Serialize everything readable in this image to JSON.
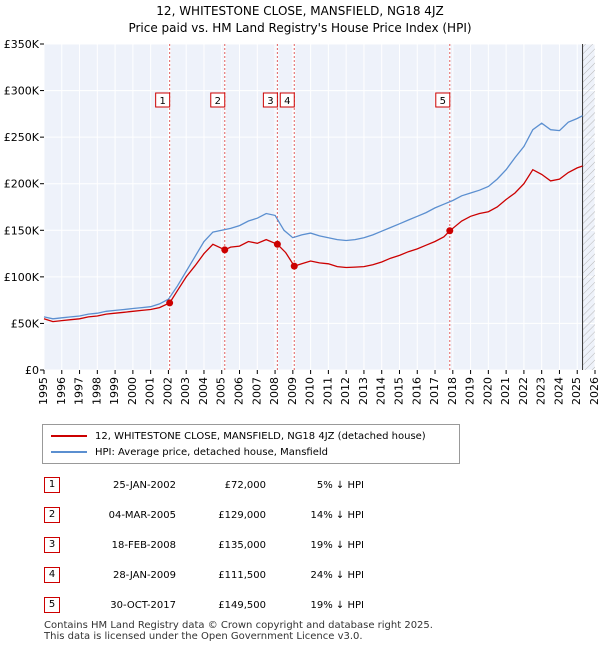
{
  "chart_data": {
    "type": "line",
    "title": "12, WHITESTONE CLOSE, MANSFIELD, NG18 4JZ",
    "subtitle": "Price paid vs. HM Land Registry's House Price Index (HPI)",
    "xlim": [
      1995,
      2026
    ],
    "ylim": [
      0,
      350000
    ],
    "yticks": [
      0,
      50000,
      100000,
      150000,
      200000,
      250000,
      300000,
      350000
    ],
    "ytick_labels": [
      "£0",
      "£50K",
      "£100K",
      "£150K",
      "£200K",
      "£250K",
      "£300K",
      "£350K"
    ],
    "xticks": [
      1995,
      1996,
      1997,
      1998,
      1999,
      2000,
      2001,
      2002,
      2003,
      2004,
      2005,
      2006,
      2007,
      2008,
      2009,
      2010,
      2011,
      2012,
      2013,
      2014,
      2015,
      2016,
      2017,
      2018,
      2019,
      2020,
      2021,
      2022,
      2023,
      2024,
      2025,
      2026
    ],
    "xtick_labels": [
      "1995",
      "1996",
      "1997",
      "1998",
      "1999",
      "2000",
      "2001",
      "2002",
      "2003",
      "2004",
      "2005",
      "2006",
      "2007",
      "2008",
      "2009",
      "2010",
      "2011",
      "2012",
      "2013",
      "2014",
      "2015",
      "2016",
      "2017",
      "2018",
      "2019",
      "2020",
      "2021",
      "2022",
      "2023",
      "2024",
      "2025",
      "2026"
    ],
    "grid": true,
    "data_end": 2025.3,
    "series": [
      {
        "name": "12, WHITESTONE CLOSE, MANSFIELD, NG18 4JZ (detached house)",
        "color": "#cc0000",
        "x": [
          1995.0,
          1995.5,
          1996.0,
          1996.5,
          1997.0,
          1997.5,
          1998.0,
          1998.5,
          1999.0,
          1999.5,
          2000.0,
          2000.5,
          2001.0,
          2001.5,
          2002.07,
          2002.5,
          2003.0,
          2003.5,
          2004.0,
          2004.5,
          2005.17,
          2005.5,
          2006.0,
          2006.5,
          2007.0,
          2007.5,
          2008.13,
          2008.6,
          2009.08,
          2009.5,
          2010.0,
          2010.5,
          2011.0,
          2011.5,
          2012.0,
          2012.5,
          2013.0,
          2013.5,
          2014.0,
          2014.5,
          2015.0,
          2015.5,
          2016.0,
          2016.5,
          2017.0,
          2017.5,
          2017.83,
          2018.5,
          2019.0,
          2019.5,
          2020.0,
          2020.5,
          2021.0,
          2021.5,
          2022.0,
          2022.5,
          2023.0,
          2023.5,
          2024.0,
          2024.5,
          2025.0,
          2025.3
        ],
        "values": [
          55000,
          52000,
          53000,
          54000,
          55000,
          57000,
          58000,
          60000,
          61000,
          62000,
          63000,
          64000,
          65000,
          67000,
          72000,
          85000,
          100000,
          112000,
          125000,
          135000,
          129000,
          132000,
          133000,
          138000,
          136000,
          140000,
          135000,
          126000,
          111500,
          114000,
          117000,
          115000,
          114000,
          111000,
          110000,
          110500,
          111000,
          113000,
          116000,
          120000,
          123000,
          127000,
          130000,
          134000,
          138000,
          143000,
          149500,
          160000,
          165000,
          168000,
          170000,
          175000,
          183000,
          190000,
          200000,
          215000,
          210000,
          203000,
          205000,
          212000,
          217000,
          219000
        ]
      },
      {
        "name": "HPI: Average price, detached house, Mansfield",
        "color": "#5b8fd0",
        "x": [
          1995.0,
          1995.5,
          1996.0,
          1996.5,
          1997.0,
          1997.5,
          1998.0,
          1998.5,
          1999.0,
          1999.5,
          2000.0,
          2000.5,
          2001.0,
          2001.5,
          2002.0,
          2002.5,
          2003.0,
          2003.5,
          2004.0,
          2004.5,
          2005.0,
          2005.5,
          2006.0,
          2006.5,
          2007.0,
          2007.5,
          2008.0,
          2008.5,
          2009.0,
          2009.5,
          2010.0,
          2010.5,
          2011.0,
          2011.5,
          2012.0,
          2012.5,
          2013.0,
          2013.5,
          2014.0,
          2014.5,
          2015.0,
          2015.5,
          2016.0,
          2016.5,
          2017.0,
          2017.5,
          2018.0,
          2018.5,
          2019.0,
          2019.5,
          2020.0,
          2020.5,
          2021.0,
          2021.5,
          2022.0,
          2022.5,
          2023.0,
          2023.5,
          2024.0,
          2024.5,
          2025.0,
          2025.3
        ],
        "values": [
          57000,
          55000,
          56000,
          57000,
          58000,
          60000,
          61000,
          63000,
          64000,
          65000,
          66000,
          67000,
          68000,
          71000,
          76000,
          90000,
          106000,
          122000,
          138000,
          148000,
          150000,
          152000,
          155000,
          160000,
          163000,
          168000,
          166000,
          150000,
          142000,
          145000,
          147000,
          144000,
          142000,
          140000,
          139000,
          140000,
          142000,
          145000,
          149000,
          153000,
          157000,
          161000,
          165000,
          169000,
          174000,
          178000,
          182000,
          187000,
          190000,
          193000,
          197000,
          205000,
          215000,
          228000,
          240000,
          258000,
          265000,
          258000,
          257000,
          266000,
          270000,
          273000
        ]
      }
    ],
    "sales": [
      {
        "label": "1",
        "x": 2002.07,
        "value": 72000
      },
      {
        "label": "2",
        "x": 2005.17,
        "value": 129000
      },
      {
        "label": "3",
        "x": 2008.13,
        "value": 135000
      },
      {
        "label": "4",
        "x": 2009.08,
        "value": 111500
      },
      {
        "label": "5",
        "x": 2017.83,
        "value": 149500
      }
    ]
  },
  "legend": {
    "red_label": "12, WHITESTONE CLOSE, MANSFIELD, NG18 4JZ (detached house)",
    "blue_label": "HPI: Average price, detached house, Mansfield"
  },
  "sales_table": [
    {
      "num": "1",
      "date": "25-JAN-2002",
      "price": "£72,000",
      "hpi": "5% ↓ HPI"
    },
    {
      "num": "2",
      "date": "04-MAR-2005",
      "price": "£129,000",
      "hpi": "14% ↓ HPI"
    },
    {
      "num": "3",
      "date": "18-FEB-2008",
      "price": "£135,000",
      "hpi": "19% ↓ HPI"
    },
    {
      "num": "4",
      "date": "28-JAN-2009",
      "price": "£111,500",
      "hpi": "24% ↓ HPI"
    },
    {
      "num": "5",
      "date": "30-OCT-2017",
      "price": "£149,500",
      "hpi": "19% ↓ HPI"
    }
  ],
  "footer": {
    "line1": "Contains HM Land Registry data © Crown copyright and database right 2025.",
    "line2": "This data is licensed under the Open Government Licence v3.0."
  }
}
